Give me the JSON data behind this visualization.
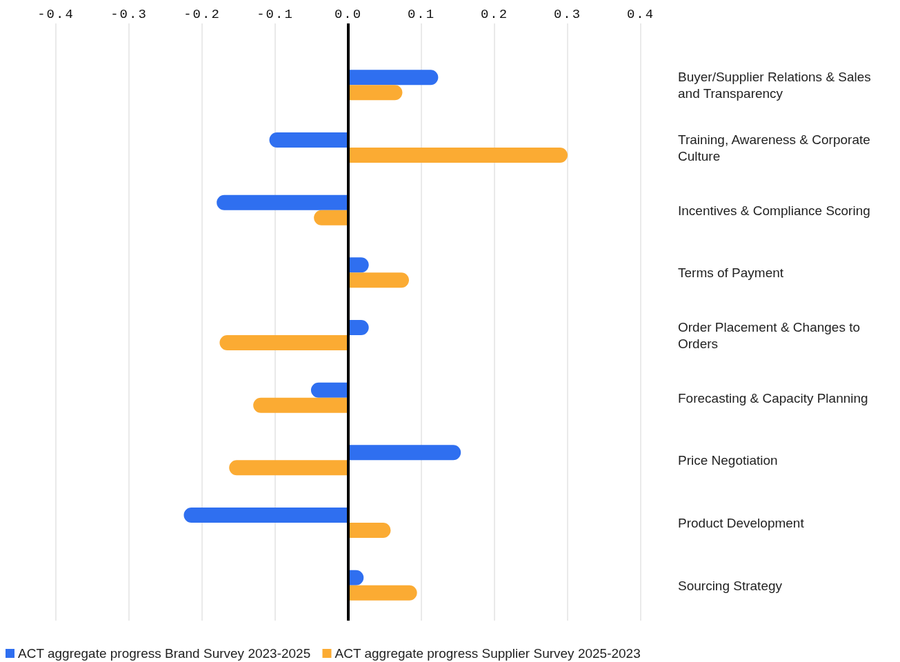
{
  "chart_data": {
    "type": "bar",
    "orientation": "horizontal",
    "categories": [
      "Buyer/Supplier Relations & Sales and Transparency",
      "Training, Awareness & Corporate Culture",
      "Incentives & Compliance Scoring",
      "Terms of Payment",
      "Order Placement & Changes to Orders",
      "Forecasting & Capacity Planning",
      "Price Negotiation",
      "Product Development",
      "Sourcing Strategy"
    ],
    "series": [
      {
        "name": "ACT aggregate progress Brand Survey 2023-2025",
        "color": "#2f6ff0",
        "values": [
          0.123,
          -0.108,
          -0.18,
          0.028,
          0.028,
          -0.051,
          0.154,
          -0.225,
          0.021
        ]
      },
      {
        "name": "ACT aggregate progress Supplier Survey 2025-2023",
        "color": "#fbab33",
        "values": [
          0.074,
          0.3,
          -0.047,
          0.083,
          -0.176,
          -0.13,
          -0.163,
          0.058,
          0.094
        ]
      }
    ],
    "xlim": [
      -0.4,
      0.4
    ],
    "xticks": [
      {
        "value": -0.4,
        "label": "-0.4"
      },
      {
        "value": -0.3,
        "label": "-0.3"
      },
      {
        "value": -0.2,
        "label": "-0.2"
      },
      {
        "value": -0.1,
        "label": "-0.1"
      },
      {
        "value": 0,
        "label": "0.0"
      },
      {
        "value": 0.1,
        "label": "0.1"
      },
      {
        "value": 0.2,
        "label": "0.2"
      },
      {
        "value": 0.3,
        "label": "0.3"
      },
      {
        "value": 0.4,
        "label": "0.4"
      }
    ],
    "ref_lines": [
      {
        "axis": "x",
        "value": 0,
        "color": "#000000"
      }
    ],
    "grid": "x",
    "legend": "bottom"
  }
}
